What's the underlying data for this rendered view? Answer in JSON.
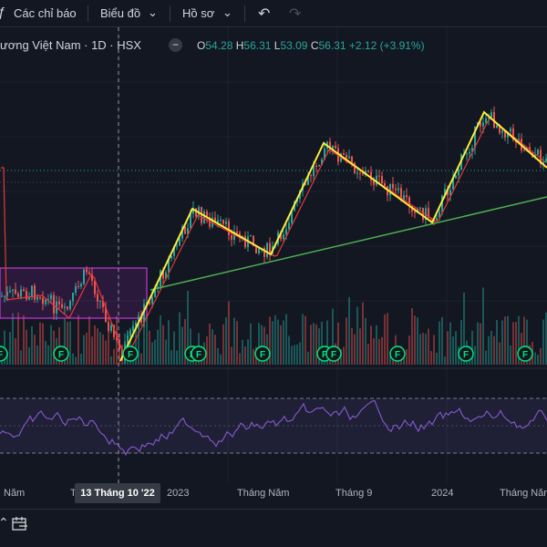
{
  "toolbar": {
    "indicators_label": "Các chỉ báo",
    "chart_label": "Biểu đồ",
    "profile_label": "Hồ sơ"
  },
  "symbol": {
    "title": "ương Việt Nam · 1D · HSX",
    "open_key": "O",
    "open": "54.28",
    "high_key": "H",
    "high": "56.31",
    "low_key": "L",
    "low": "53.09",
    "close_key": "C",
    "close": "56.31",
    "change": "+2.12 (+3.91%)"
  },
  "x_axis": {
    "labels": [
      "Năm",
      "T",
      "2023",
      "Tháng Năm",
      "Tháng 9",
      "2024",
      "Tháng Năm"
    ],
    "crosshair_date": "13 Tháng 10 '22"
  },
  "colors": {
    "up": "#26a69a",
    "down": "#ef5350",
    "zigzag": "#ffeb3b",
    "trendline": "#4caf50",
    "ma": "#e53935",
    "rsi": "#7e57c2",
    "box": "#e040fb"
  },
  "earnings_marker_label": "F"
}
